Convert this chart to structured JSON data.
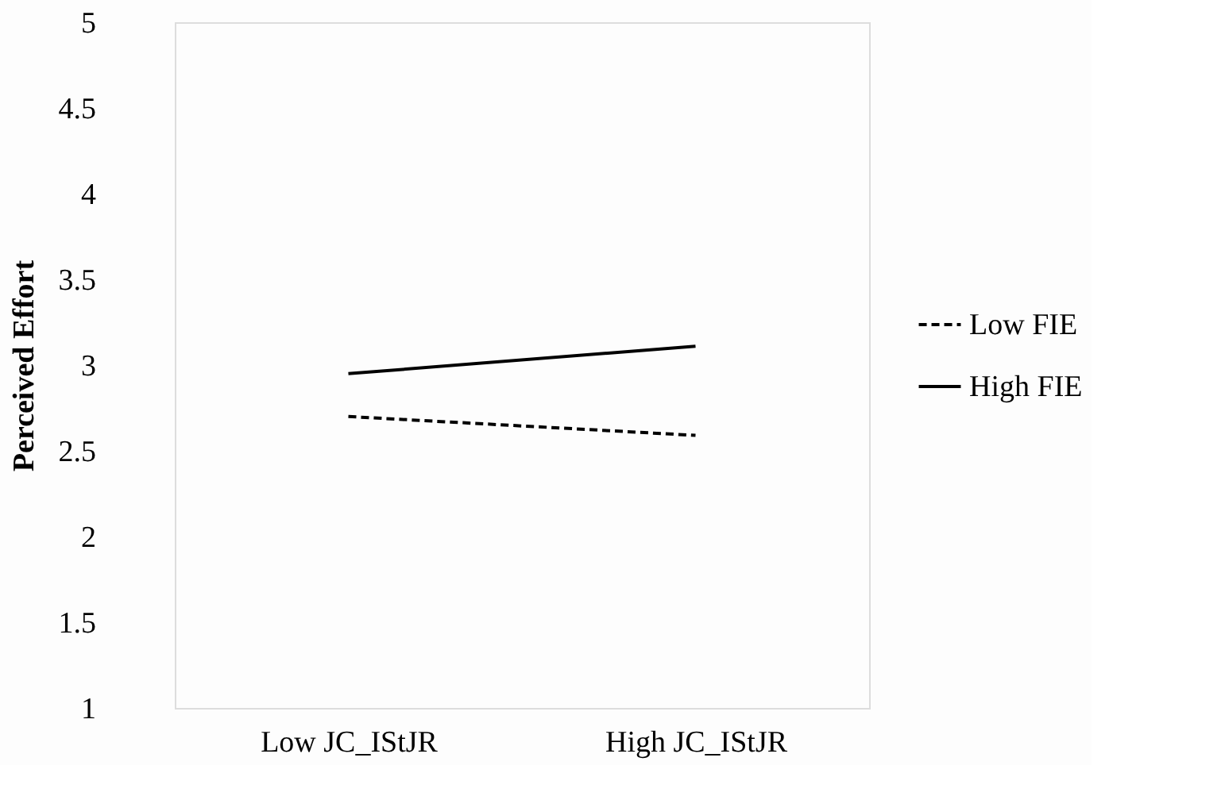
{
  "chart_data": {
    "type": "line",
    "ylabel": "Perceived Effort",
    "categories": [
      "Low JC_IStJR",
      "High JC_IStJR"
    ],
    "series": [
      {
        "name": "Low FIE",
        "color": "#000000",
        "line_style": "dashed",
        "values": [
          2.7,
          2.59
        ]
      },
      {
        "name": "High FIE",
        "color": "#000000",
        "line_style": "solid",
        "values": [
          2.95,
          3.11
        ]
      }
    ],
    "ylim": [
      1,
      5
    ],
    "yticks": [
      1,
      1.5,
      2,
      2.5,
      3,
      3.5,
      4,
      4.5,
      5
    ],
    "grid": false,
    "legend": "right",
    "marker": "none"
  }
}
